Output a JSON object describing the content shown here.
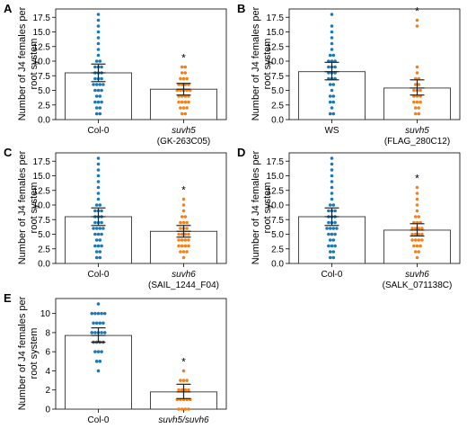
{
  "colors": {
    "control": "#1f77b4",
    "mutant": "#ff7f0e",
    "bar_edge": "#333333",
    "error": "#222222"
  },
  "ylabel": "Number of J4 females per root system",
  "panels": [
    {
      "letter": "A",
      "chart_data": {
        "type": "bar",
        "ylabel": "Number of J4 females per root system",
        "ylim": [
          0,
          18
        ],
        "yticks": [
          0,
          2.5,
          5.0,
          7.5,
          10.0,
          12.5,
          15.0,
          17.5
        ],
        "categories": [
          {
            "label": "Col-0",
            "sub": "",
            "mean": 8.0,
            "error": [
              6.5,
              9.5
            ],
            "points": [
              1,
              1,
              2,
              2,
              3,
              3,
              3,
              4,
              4,
              5,
              5,
              5,
              6,
              6,
              6,
              6,
              7,
              7,
              7,
              8,
              8,
              8,
              9,
              9,
              9,
              10,
              10,
              11,
              12,
              13,
              14,
              15,
              16,
              17,
              18
            ]
          },
          {
            "label": "suvh5",
            "sub": "(GK-263C05)",
            "mean": 5.2,
            "error": [
              4.2,
              6.2
            ],
            "significant": true,
            "points": [
              1,
              1,
              2,
              2,
              2,
              3,
              3,
              3,
              3,
              4,
              4,
              4,
              4,
              5,
              5,
              5,
              5,
              5,
              6,
              6,
              6,
              6,
              7,
              7,
              7,
              8,
              8,
              9,
              9
            ]
          }
        ]
      }
    },
    {
      "letter": "B",
      "chart_data": {
        "type": "bar",
        "ylabel": "Number of J4 females per root system",
        "ylim": [
          0,
          18
        ],
        "yticks": [
          0,
          2.5,
          5.0,
          7.5,
          10.0,
          12.5,
          15.0,
          17.5
        ],
        "categories": [
          {
            "label": "WS",
            "sub": "",
            "mean": 8.2,
            "error": [
              6.8,
              9.8
            ],
            "points": [
              1,
              1,
              2,
              3,
              3,
              4,
              4,
              5,
              6,
              6,
              7,
              7,
              7,
              8,
              8,
              8,
              9,
              9,
              9,
              10,
              10,
              10,
              11,
              11,
              12,
              13,
              14,
              15,
              16,
              18
            ]
          },
          {
            "label": "suvh5",
            "sub": "(FLAG_280C12)",
            "mean": 5.4,
            "error": [
              4.2,
              6.8
            ],
            "significant": true,
            "points": [
              1,
              1,
              2,
              2,
              3,
              3,
              3,
              4,
              4,
              4,
              5,
              5,
              5,
              6,
              6,
              7,
              7,
              8,
              9,
              16,
              17
            ]
          }
        ]
      }
    },
    {
      "letter": "C",
      "chart_data": {
        "type": "bar",
        "ylabel": "Number of J4 females per root system",
        "ylim": [
          0,
          18
        ],
        "yticks": [
          0,
          2.5,
          5.0,
          7.5,
          10.0,
          12.5,
          15.0,
          17.5
        ],
        "categories": [
          {
            "label": "Col-0",
            "sub": "",
            "mean": 8.0,
            "error": [
              6.5,
              9.5
            ],
            "points": [
              1,
              1,
              2,
              2,
              3,
              3,
              3,
              4,
              4,
              5,
              5,
              5,
              6,
              6,
              6,
              6,
              7,
              7,
              7,
              8,
              8,
              8,
              9,
              9,
              9,
              10,
              10,
              11,
              12,
              13,
              14,
              15,
              16,
              17,
              18
            ]
          },
          {
            "label": "suvh6",
            "sub": "(SAIL_1244_F04)",
            "mean": 5.5,
            "error": [
              4.5,
              6.5
            ],
            "significant": true,
            "points": [
              1,
              2,
              2,
              2,
              3,
              3,
              3,
              3,
              4,
              4,
              4,
              4,
              5,
              5,
              5,
              5,
              6,
              6,
              6,
              7,
              7,
              7,
              8,
              8,
              9,
              10,
              11
            ]
          }
        ]
      }
    },
    {
      "letter": "D",
      "chart_data": {
        "type": "bar",
        "ylabel": "Number of J4 females per root system",
        "ylim": [
          0,
          18
        ],
        "yticks": [
          0,
          2.5,
          5.0,
          7.5,
          10.0,
          12.5,
          15.0,
          17.5
        ],
        "categories": [
          {
            "label": "Col-0",
            "sub": "",
            "mean": 8.0,
            "error": [
              6.5,
              9.5
            ],
            "points": [
              1,
              1,
              2,
              2,
              3,
              3,
              3,
              4,
              4,
              5,
              5,
              5,
              6,
              6,
              6,
              6,
              7,
              7,
              7,
              8,
              8,
              8,
              9,
              9,
              9,
              10,
              10,
              11,
              12,
              13,
              14,
              15,
              16,
              17,
              18
            ]
          },
          {
            "label": "suvh6",
            "sub": "(SALK_071138C)",
            "mean": 5.7,
            "error": [
              4.7,
              6.8
            ],
            "significant": true,
            "points": [
              1,
              2,
              2,
              3,
              3,
              3,
              4,
              4,
              4,
              4,
              5,
              5,
              5,
              5,
              6,
              6,
              6,
              6,
              7,
              7,
              7,
              8,
              8,
              9,
              10,
              11,
              12,
              13
            ]
          }
        ]
      }
    },
    {
      "letter": "E",
      "chart_data": {
        "type": "bar",
        "ylabel": "Number of J4 females per root system",
        "ylim": [
          0,
          11
        ],
        "yticks": [
          0,
          2,
          4,
          6,
          8,
          10
        ],
        "categories": [
          {
            "label": "Col-0",
            "sub": "",
            "mean": 7.7,
            "error": [
              7.0,
              8.5
            ],
            "points": [
              4,
              5,
              5,
              6,
              6,
              6,
              7,
              7,
              7,
              7,
              8,
              8,
              8,
              8,
              8,
              9,
              9,
              9,
              9,
              10,
              10,
              10,
              10,
              10,
              11
            ]
          },
          {
            "label": "suvh5/suvh6",
            "sub": "",
            "mean": 1.8,
            "error": [
              1.1,
              2.6
            ],
            "significant": true,
            "points": [
              0,
              0,
              0,
              0,
              1,
              1,
              1,
              1,
              1,
              2,
              2,
              2,
              2,
              3,
              3,
              3,
              4
            ]
          }
        ]
      }
    }
  ],
  "significance_marker": "*"
}
